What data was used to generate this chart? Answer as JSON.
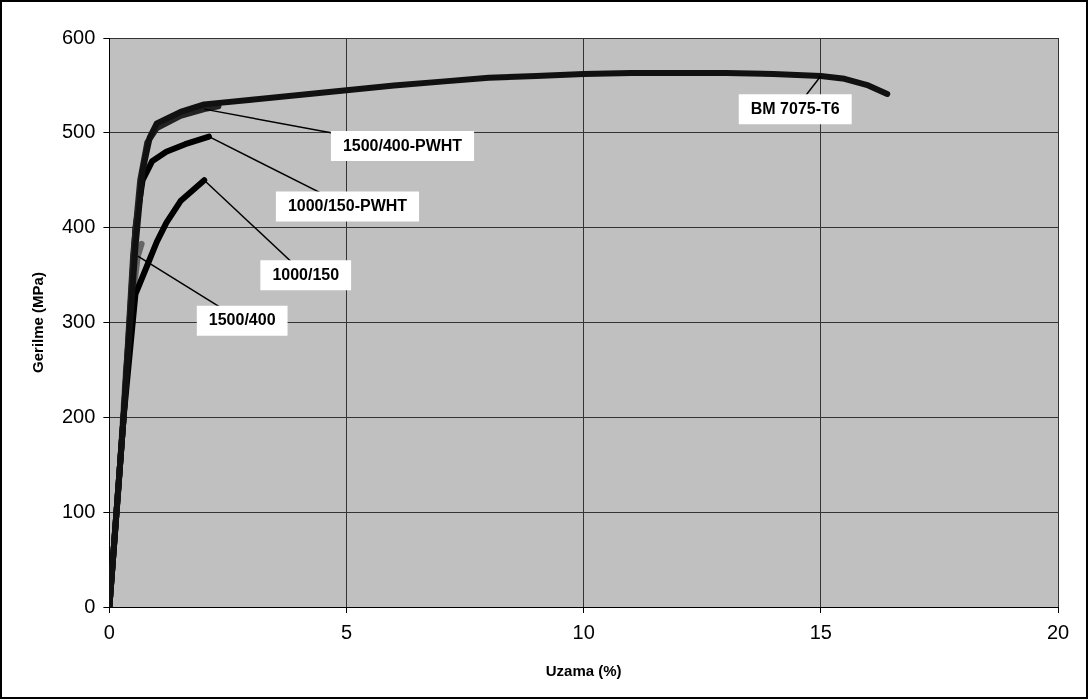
{
  "chart_data": {
    "type": "line",
    "xlabel": "Uzama (%)",
    "ylabel": "Gerilme (MPa)",
    "xlim": [
      0,
      20
    ],
    "xticks": [
      0,
      5,
      10,
      15,
      20
    ],
    "ylim": [
      0,
      600
    ],
    "yticks": [
      0,
      100,
      200,
      300,
      400,
      500,
      600
    ],
    "grid": true,
    "legend": false,
    "marker": "none",
    "series": [
      {
        "name": "BM 7075-T6",
        "color": "#111111",
        "x": [
          0,
          0.3,
          0.55,
          0.7,
          0.85,
          1,
          1.5,
          2,
          3,
          4,
          5,
          6,
          7,
          8,
          9,
          10,
          11,
          12,
          13,
          14,
          15,
          15.5,
          16,
          16.4
        ],
        "values": [
          0,
          200,
          380,
          460,
          495,
          510,
          522,
          530,
          535,
          540,
          545,
          550,
          554,
          558,
          560,
          562,
          563,
          563,
          563,
          562,
          560,
          557,
          550,
          541
        ]
      },
      {
        "name": "1500/400-PWHT",
        "color": "#222222",
        "x": [
          0,
          0.3,
          0.5,
          0.65,
          0.8,
          1,
          1.5,
          2,
          2.3
        ],
        "values": [
          0,
          200,
          370,
          450,
          490,
          505,
          518,
          525,
          528
        ]
      },
      {
        "name": "1000/150-PWHT",
        "color": "#000000",
        "x": [
          0,
          0.3,
          0.55,
          0.7,
          0.9,
          1.2,
          1.6,
          2.1
        ],
        "values": [
          0,
          200,
          400,
          450,
          470,
          480,
          488,
          496
        ]
      },
      {
        "name": "1000/150",
        "color": "#000000",
        "x": [
          0,
          0.3,
          0.55,
          0.78,
          1,
          1.2,
          1.5,
          2
        ],
        "values": [
          0,
          200,
          330,
          358,
          385,
          405,
          428,
          450
        ]
      },
      {
        "name": "1500/400",
        "color": "#666666",
        "x": [
          0,
          0.2,
          0.35,
          0.5,
          0.6,
          0.68
        ],
        "values": [
          0,
          130,
          250,
          330,
          370,
          383
        ]
      }
    ]
  }
}
